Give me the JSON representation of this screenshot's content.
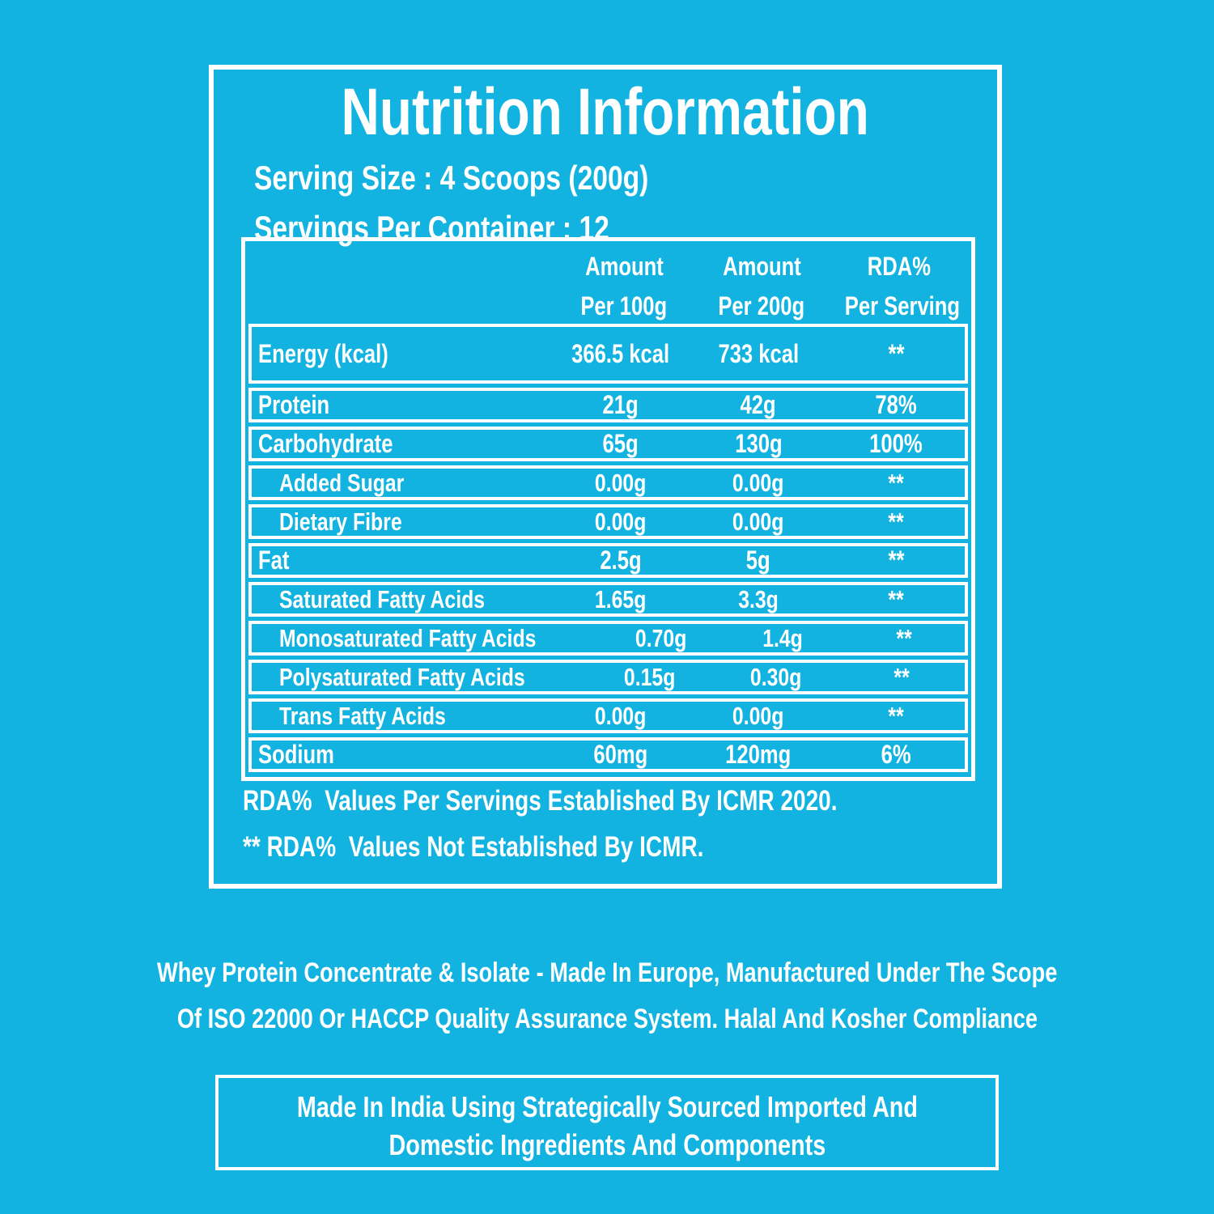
{
  "colors": {
    "background": "#12b3e0",
    "foreground": "#ffffff"
  },
  "header": {
    "title": "Nutrition Information",
    "serving_size": "Serving Size : 4 Scoops (200g)",
    "servings_per_container": "Servings Per Container : 12"
  },
  "table": {
    "columns": [
      {
        "line1": "Amount",
        "line2": "Per 100g"
      },
      {
        "line1": "Amount",
        "line2": "Per 200g"
      },
      {
        "line1": "RDA%",
        "line2": "Per Serving"
      }
    ],
    "rows": [
      {
        "label": "Energy (kcal)",
        "per100": "366.5 kcal",
        "per200": "733 kcal",
        "rda": "**"
      },
      {
        "label": "Protein",
        "per100": "21g",
        "per200": "42g",
        "rda": "78%"
      },
      {
        "label": "Carbohydrate",
        "per100": "65g",
        "per200": "130g",
        "rda": "100%"
      },
      {
        "label": "Added Sugar",
        "per100": "0.00g",
        "per200": "0.00g",
        "rda": "**"
      },
      {
        "label": "Dietary Fibre",
        "per100": "0.00g",
        "per200": "0.00g",
        "rda": "**"
      },
      {
        "label": "Fat",
        "per100": "2.5g",
        "per200": "5g",
        "rda": "**"
      },
      {
        "label": "Saturated Fatty Acids",
        "per100": "1.65g",
        "per200": "3.3g",
        "rda": "**"
      },
      {
        "label": "Monosaturated Fatty Acids",
        "per100": "0.70g",
        "per200": "1.4g",
        "rda": "**"
      },
      {
        "label": "Polysaturated Fatty Acids",
        "per100": "0.15g",
        "per200": "0.30g",
        "rda": "**"
      },
      {
        "label": "Trans Fatty Acids",
        "per100": "0.00g",
        "per200": "0.00g",
        "rda": "**"
      },
      {
        "label": "Sodium",
        "per100": "60mg",
        "per200": "120mg",
        "rda": "6%"
      }
    ]
  },
  "footnotes": {
    "established": "RDA%  Values Per Servings Established By ICMR 2020.",
    "not_established": "** RDA%  Values Not Established By ICMR."
  },
  "sourcing_note": {
    "line1": "Whey Protein Concentrate & Isolate - Made In Europe, Manufactured Under The Scope",
    "line2": "Of ISO 22000 Or HACCP Quality Assurance System. Halal And Kosher Compliance"
  },
  "made_in_box": {
    "line1": "Made In India Using Strategically Sourced Imported And",
    "line2": "Domestic Ingredients And Components"
  }
}
